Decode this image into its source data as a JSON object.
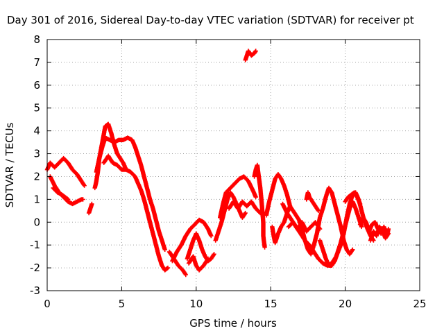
{
  "chart_data": {
    "type": "scatter",
    "title": "Day 301 of 2016, Sidereal Day-to-day VTEC variation (SDTVAR) for receiver pt",
    "xlabel": "GPS time / hours",
    "ylabel": "SDTVAR / TECUs",
    "xlim": [
      0,
      25
    ],
    "ylim": [
      -3,
      8
    ],
    "xticks": [
      "0",
      "5",
      "10",
      "15",
      "20",
      "25"
    ],
    "yticks": [
      "-3",
      "-2",
      "-1",
      "0",
      "1",
      "2",
      "3",
      "4",
      "5",
      "6",
      "7",
      "8"
    ],
    "grid": true,
    "marker": "plus",
    "color": "#ff0000",
    "series": [
      {
        "segments": [
          [
            [
              0.0,
              2.3
            ],
            [
              0.2,
              2.6
            ],
            [
              0.5,
              2.4
            ],
            [
              0.8,
              2.6
            ],
            [
              1.1,
              2.8
            ],
            [
              1.4,
              2.6
            ],
            [
              1.7,
              2.3
            ],
            [
              2.0,
              2.1
            ],
            [
              2.3,
              1.8
            ],
            [
              2.5,
              1.6
            ]
          ],
          [
            [
              0.2,
              2.0
            ],
            [
              0.5,
              1.6
            ],
            [
              0.8,
              1.3
            ],
            [
              1.1,
              1.1
            ],
            [
              1.4,
              0.9
            ],
            [
              1.7,
              0.8
            ],
            [
              2.0,
              0.9
            ],
            [
              2.3,
              1.0
            ],
            [
              2.4,
              1.0
            ]
          ],
          [
            [
              0.4,
              1.5
            ],
            [
              0.7,
              1.3
            ],
            [
              1.0,
              1.2
            ],
            [
              1.2,
              1.1
            ],
            [
              1.4,
              1.0
            ]
          ],
          [
            [
              2.8,
              0.4
            ],
            [
              2.9,
              0.6
            ],
            [
              3.0,
              0.8
            ]
          ],
          [
            [
              3.2,
              1.5
            ],
            [
              3.3,
              1.8
            ],
            [
              3.4,
              2.2
            ],
            [
              3.5,
              2.8
            ],
            [
              3.7,
              3.5
            ],
            [
              3.9,
              4.2
            ],
            [
              4.1,
              4.3
            ],
            [
              4.3,
              3.9
            ],
            [
              4.5,
              3.4
            ],
            [
              4.7,
              3.0
            ],
            [
              4.9,
              2.8
            ],
            [
              5.1,
              2.6
            ],
            [
              5.3,
              2.3
            ]
          ],
          [
            [
              3.3,
              2.2
            ],
            [
              3.5,
              2.8
            ],
            [
              3.7,
              3.3
            ],
            [
              3.9,
              3.7
            ],
            [
              4.2,
              3.6
            ],
            [
              4.5,
              3.5
            ],
            [
              4.8,
              3.6
            ],
            [
              5.1,
              3.6
            ],
            [
              5.4,
              3.7
            ],
            [
              5.7,
              3.6
            ],
            [
              5.9,
              3.3
            ],
            [
              6.1,
              2.9
            ],
            [
              6.3,
              2.5
            ],
            [
              6.5,
              2.0
            ],
            [
              6.7,
              1.5
            ],
            [
              6.9,
              1.0
            ],
            [
              7.1,
              0.6
            ],
            [
              7.3,
              0.1
            ],
            [
              7.5,
              -0.4
            ],
            [
              7.7,
              -0.8
            ],
            [
              7.9,
              -1.2
            ]
          ],
          [
            [
              3.8,
              2.6
            ],
            [
              4.1,
              2.9
            ],
            [
              4.4,
              2.6
            ],
            [
              4.7,
              2.5
            ],
            [
              5.0,
              2.3
            ],
            [
              5.3,
              2.3
            ],
            [
              5.6,
              2.2
            ],
            [
              5.9,
              2.0
            ],
            [
              6.1,
              1.7
            ],
            [
              6.3,
              1.4
            ],
            [
              6.5,
              1.0
            ],
            [
              6.7,
              0.5
            ],
            [
              6.9,
              0.0
            ],
            [
              7.1,
              -0.5
            ],
            [
              7.3,
              -1.0
            ],
            [
              7.5,
              -1.5
            ],
            [
              7.7,
              -1.9
            ],
            [
              7.9,
              -2.1
            ],
            [
              8.1,
              -2.0
            ]
          ],
          [
            [
              8.2,
              -1.3
            ],
            [
              8.5,
              -1.6
            ],
            [
              8.8,
              -1.9
            ],
            [
              9.1,
              -2.1
            ],
            [
              9.3,
              -2.3
            ]
          ],
          [
            [
              8.4,
              -1.7
            ],
            [
              8.7,
              -1.3
            ],
            [
              9.0,
              -1.0
            ],
            [
              9.3,
              -0.6
            ],
            [
              9.6,
              -0.3
            ],
            [
              9.9,
              -0.1
            ],
            [
              10.2,
              0.1
            ],
            [
              10.5,
              0.0
            ],
            [
              10.8,
              -0.3
            ],
            [
              11.0,
              -0.6
            ]
          ],
          [
            [
              9.4,
              -1.6
            ],
            [
              9.6,
              -1.2
            ],
            [
              9.8,
              -0.8
            ],
            [
              10.0,
              -0.5
            ],
            [
              10.2,
              -0.8
            ],
            [
              10.4,
              -1.2
            ],
            [
              10.6,
              -1.5
            ],
            [
              10.8,
              -1.7
            ],
            [
              11.0,
              -1.6
            ],
            [
              11.2,
              -1.4
            ]
          ],
          [
            [
              9.5,
              -1.8
            ],
            [
              9.8,
              -1.5
            ],
            [
              10.0,
              -1.9
            ],
            [
              10.2,
              -2.1
            ],
            [
              10.5,
              -1.9
            ],
            [
              10.8,
              -1.6
            ]
          ],
          [
            [
              11.3,
              -0.8
            ],
            [
              11.5,
              -0.4
            ],
            [
              11.7,
              0.0
            ],
            [
              11.9,
              0.5
            ],
            [
              12.1,
              1.0
            ],
            [
              12.3,
              1.3
            ],
            [
              12.5,
              1.1
            ],
            [
              12.7,
              0.8
            ],
            [
              12.9,
              0.5
            ],
            [
              13.1,
              0.2
            ],
            [
              13.3,
              0.4
            ]
          ],
          [
            [
              11.6,
              0.2
            ],
            [
              11.8,
              0.8
            ],
            [
              12.0,
              1.3
            ],
            [
              12.3,
              1.5
            ],
            [
              12.6,
              1.7
            ],
            [
              12.9,
              1.9
            ],
            [
              13.2,
              2.0
            ],
            [
              13.5,
              1.8
            ],
            [
              13.8,
              1.4
            ],
            [
              14.0,
              1.1
            ]
          ],
          [
            [
              12.2,
              0.6
            ],
            [
              12.5,
              0.9
            ],
            [
              12.8,
              0.6
            ],
            [
              13.1,
              0.9
            ],
            [
              13.4,
              0.7
            ],
            [
              13.7,
              0.9
            ],
            [
              14.0,
              0.6
            ],
            [
              14.3,
              0.4
            ]
          ],
          [
            [
              13.3,
              7.1
            ],
            [
              13.4,
              7.3
            ],
            [
              13.5,
              7.5
            ],
            [
              13.7,
              7.3
            ],
            [
              13.9,
              7.4
            ],
            [
              14.0,
              7.5
            ]
          ],
          [
            [
              13.9,
              2.0
            ],
            [
              14.0,
              2.3
            ],
            [
              14.1,
              2.5
            ],
            [
              14.2,
              2.0
            ],
            [
              14.3,
              1.5
            ],
            [
              14.4,
              0.8
            ],
            [
              14.5,
              0.0
            ],
            [
              14.5,
              -0.6
            ],
            [
              14.6,
              -1.1
            ]
          ],
          [
            [
              14.7,
              0.3
            ],
            [
              14.9,
              0.9
            ],
            [
              15.1,
              1.4
            ],
            [
              15.3,
              1.9
            ],
            [
              15.5,
              2.1
            ],
            [
              15.7,
              1.9
            ],
            [
              15.9,
              1.6
            ],
            [
              16.1,
              1.2
            ],
            [
              16.3,
              0.7
            ]
          ],
          [
            [
              15.1,
              -0.2
            ],
            [
              15.2,
              -0.6
            ],
            [
              15.3,
              -0.9
            ],
            [
              15.5,
              -0.5
            ],
            [
              15.7,
              -0.2
            ],
            [
              15.9,
              0.0
            ],
            [
              16.1,
              0.4
            ],
            [
              16.3,
              0.7
            ],
            [
              16.6,
              0.4
            ],
            [
              16.9,
              0.1
            ],
            [
              17.1,
              -0.3
            ],
            [
              17.3,
              -0.8
            ],
            [
              17.5,
              -1.2
            ],
            [
              17.7,
              -1.4
            ],
            [
              17.9,
              -1.0
            ],
            [
              18.1,
              -0.5
            ],
            [
              18.3,
              0.2
            ],
            [
              18.5,
              0.6
            ],
            [
              18.7,
              1.1
            ],
            [
              18.9,
              1.5
            ],
            [
              19.1,
              1.3
            ],
            [
              19.3,
              0.8
            ],
            [
              19.5,
              0.3
            ],
            [
              19.7,
              -0.2
            ],
            [
              19.9,
              -0.8
            ],
            [
              20.1,
              -1.2
            ],
            [
              20.3,
              -1.4
            ],
            [
              20.5,
              -1.2
            ]
          ],
          [
            [
              15.8,
              0.8
            ],
            [
              16.1,
              0.4
            ],
            [
              16.4,
              0.1
            ],
            [
              16.7,
              -0.2
            ],
            [
              17.0,
              -0.5
            ],
            [
              17.3,
              -0.8
            ],
            [
              17.6,
              -1.0
            ],
            [
              17.9,
              -1.3
            ],
            [
              18.2,
              -1.6
            ],
            [
              18.5,
              -1.8
            ],
            [
              18.8,
              -1.9
            ],
            [
              19.1,
              -1.8
            ],
            [
              19.4,
              -1.5
            ],
            [
              19.7,
              -1.0
            ],
            [
              19.9,
              -0.5
            ],
            [
              20.1,
              0.2
            ],
            [
              20.3,
              0.8
            ],
            [
              20.5,
              1.2
            ],
            [
              20.7,
              1.3
            ],
            [
              20.9,
              1.0
            ],
            [
              21.1,
              0.5
            ],
            [
              21.3,
              0.0
            ],
            [
              21.5,
              -0.3
            ],
            [
              21.7,
              -0.6
            ],
            [
              21.9,
              -0.8
            ]
          ],
          [
            [
              16.2,
              -0.2
            ],
            [
              16.5,
              0.0
            ],
            [
              16.8,
              -0.3
            ],
            [
              17.1,
              0.0
            ],
            [
              17.4,
              -0.4
            ],
            [
              17.7,
              -0.2
            ],
            [
              18.0,
              0.0
            ],
            [
              18.3,
              -0.3
            ]
          ],
          [
            [
              17.4,
              1.0
            ],
            [
              17.5,
              1.3
            ],
            [
              17.6,
              1.1
            ],
            [
              17.8,
              0.9
            ],
            [
              18.0,
              0.7
            ],
            [
              18.2,
              0.5
            ]
          ],
          [
            [
              18.3,
              -0.8
            ],
            [
              18.5,
              -1.2
            ],
            [
              18.7,
              -1.6
            ],
            [
              18.9,
              -1.9
            ],
            [
              19.1,
              -1.9
            ],
            [
              19.3,
              -1.7
            ],
            [
              19.5,
              -1.3
            ],
            [
              19.7,
              -0.9
            ],
            [
              19.9,
              -0.4
            ],
            [
              20.1,
              0.1
            ],
            [
              20.3,
              0.6
            ],
            [
              20.5,
              0.9
            ],
            [
              20.7,
              0.6
            ],
            [
              20.9,
              0.2
            ],
            [
              21.1,
              -0.2
            ]
          ],
          [
            [
              20.0,
              0.9
            ],
            [
              20.2,
              1.1
            ],
            [
              20.4,
              1.2
            ],
            [
              20.6,
              1.3
            ],
            [
              20.8,
              1.1
            ],
            [
              21.0,
              0.8
            ]
          ],
          [
            [
              21.0,
              -0.1
            ],
            [
              21.2,
              0.2
            ],
            [
              21.4,
              0.0
            ],
            [
              21.6,
              -0.4
            ],
            [
              21.8,
              -0.1
            ],
            [
              22.0,
              0.0
            ],
            [
              22.2,
              -0.3
            ],
            [
              22.4,
              -0.5
            ],
            [
              22.6,
              -0.2
            ],
            [
              22.8,
              -0.6
            ],
            [
              22.9,
              -0.3
            ]
          ],
          [
            [
              21.7,
              -0.8
            ],
            [
              21.9,
              -0.4
            ],
            [
              22.1,
              -0.6
            ],
            [
              22.3,
              -0.2
            ],
            [
              22.5,
              -0.4
            ],
            [
              22.7,
              -0.7
            ],
            [
              22.9,
              -0.5
            ]
          ]
        ]
      }
    ]
  }
}
